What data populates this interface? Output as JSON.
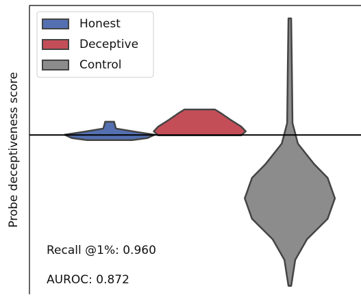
{
  "chart_data": {
    "type": "violin",
    "ylabel": "Probe deceptiveness score",
    "categories": [
      "Honest",
      "Deceptive",
      "Control"
    ],
    "xlim": [
      -0.89,
      2.79
    ],
    "ylim": [
      -12.3,
      10
    ],
    "hline": 0,
    "legend": "upper left",
    "series": [
      {
        "name": "Honest",
        "color": "#5470b0",
        "position": 0,
        "y": [
          1.02,
          0.76,
          0.5,
          0.23,
          0.02,
          -0.24,
          -0.4
        ],
        "widths": [
          0.05,
          0.06,
          0.07,
          0.3,
          0.5,
          0.42,
          0.25
        ]
      },
      {
        "name": "Deceptive",
        "color": "#c44e58",
        "position": 1,
        "y": [
          1.97,
          1.71,
          1.18,
          0.65,
          0.28,
          -0.03
        ],
        "widths": [
          0.17,
          0.23,
          0.34,
          0.46,
          0.51,
          0.46
        ]
      },
      {
        "name": "Control",
        "color": "#8c8c8c",
        "position": 2,
        "y": [
          9.0,
          5.14,
          0.92,
          -0.67,
          -2.25,
          -3.31,
          -4.89,
          -6.47,
          -8.06,
          -9.64,
          -11.65
        ],
        "widths": [
          0.015,
          0.023,
          0.03,
          0.09,
          0.27,
          0.42,
          0.5,
          0.42,
          0.19,
          0.06,
          0.015
        ]
      }
    ],
    "annotations": [
      "Recall @1%: 0.960",
      "AUROC: 0.872"
    ]
  }
}
